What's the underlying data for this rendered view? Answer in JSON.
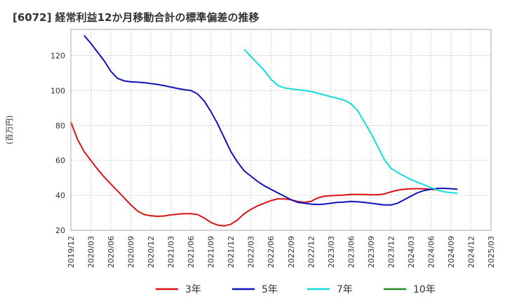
{
  "chart_data": {
    "type": "line",
    "title": "[6072]  経常利益12か月移動合計の標準偏差の推移",
    "ylabel": "(百万円)",
    "xlabel": "",
    "ylim": [
      20,
      135
    ],
    "yticks": [
      20,
      40,
      60,
      80,
      100,
      120
    ],
    "xlim": [
      "2019/12",
      "2025/03"
    ],
    "xticks": [
      "2019/12",
      "2020/03",
      "2020/06",
      "2020/09",
      "2020/12",
      "2021/03",
      "2021/06",
      "2021/09",
      "2021/12",
      "2022/03",
      "2022/06",
      "2022/09",
      "2022/12",
      "2023/03",
      "2023/06",
      "2023/09",
      "2023/12",
      "2024/03",
      "2024/06",
      "2024/09",
      "2024/12",
      "2025/03"
    ],
    "grid": true,
    "legend_position": "bottom",
    "series": [
      {
        "name": "3年",
        "color": "#dd1111",
        "start": "2019/12",
        "values": [
          82,
          72,
          65,
          60,
          55,
          50.5,
          46.5,
          42.5,
          38.5,
          34.5,
          31,
          29,
          28.3,
          28,
          28.2,
          28.8,
          29.2,
          29.5,
          29.5,
          29,
          27,
          24.5,
          23,
          22.5,
          23.5,
          26,
          29.5,
          32,
          34,
          35.5,
          37,
          38,
          38,
          37.5,
          36.5,
          36,
          36.5,
          38.5,
          39.5,
          39.8,
          40,
          40.2,
          40.5,
          40.5,
          40.5,
          40.3,
          40.3,
          40.8,
          42,
          43,
          43.5,
          43.8,
          43.8,
          43.8,
          43.5,
          43.2
        ]
      },
      {
        "name": "5年",
        "color": "#1111bb",
        "start": "2020/02",
        "values": [
          131.5,
          127,
          122,
          117,
          111,
          107,
          105.5,
          105,
          104.8,
          104.5,
          104,
          103.5,
          102.8,
          102,
          101.2,
          100.5,
          100,
          98,
          94,
          88,
          81,
          73,
          65,
          59,
          54,
          51,
          48,
          45.5,
          43.5,
          41.5,
          39.5,
          37.5,
          36,
          35.5,
          35,
          34.8,
          35,
          35.5,
          36,
          36.2,
          36.5,
          36.3,
          36,
          35.5,
          35,
          34.5,
          34.5,
          35.5,
          37.5,
          39.5,
          41.5,
          42.8,
          43.5,
          44,
          44,
          43.8,
          43.5
        ]
      },
      {
        "name": "7年",
        "color": "#11dddd",
        "start": "2022/02",
        "values": [
          123.5,
          119.5,
          115.5,
          111.5,
          106.5,
          103,
          101.5,
          101,
          100.5,
          100,
          99.5,
          98.5,
          97.5,
          96.5,
          95.5,
          94.5,
          92.5,
          88.5,
          82,
          75.5,
          68,
          60.5,
          55.5,
          53,
          51,
          49,
          47.5,
          46,
          44.5,
          43,
          42,
          41.5,
          41.2
        ]
      },
      {
        "name": "10年",
        "color": "#228822",
        "start": "2019/12",
        "values": []
      }
    ]
  }
}
